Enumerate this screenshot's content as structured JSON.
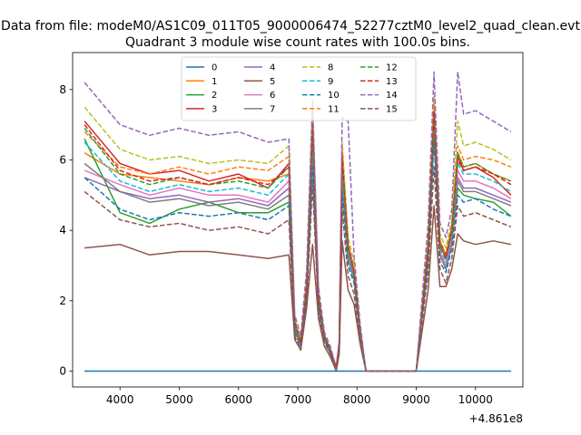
{
  "chart_data": {
    "type": "line",
    "suptitle": "Data from file: modeM0/AS1C09_011T05_9000006474_52277cztM0_level2_quad_clean.evt",
    "title": "Quadrant 3 module wise count rates with 100.0s bins.",
    "xlabel": "",
    "ylabel": "",
    "x_offset_label": "+4.861e8",
    "xlim": [
      3200,
      10800
    ],
    "ylim": [
      -0.45,
      9.05
    ],
    "x_ticks": [
      4000,
      5000,
      6000,
      7000,
      8000,
      9000,
      10000
    ],
    "x_tick_labels": [
      "4000",
      "5000",
      "6000",
      "7000",
      "8000",
      "9000",
      "10000"
    ],
    "y_ticks": [
      0,
      2,
      4,
      6,
      8
    ],
    "y_tick_labels": [
      "0",
      "2",
      "4",
      "6",
      "8"
    ],
    "x": [
      3400,
      4000,
      4500,
      5000,
      5500,
      6000,
      6500,
      6850,
      6950,
      7050,
      7150,
      7250,
      7350,
      7450,
      7550,
      7650,
      7700,
      7750,
      7850,
      7950,
      8050,
      8150,
      8250,
      8350,
      8500,
      9000,
      9200,
      9300,
      9400,
      9500,
      9600,
      9700,
      9800,
      10000,
      10300,
      10600
    ],
    "legend": {
      "placement": "upper-center",
      "columns": 4
    },
    "series": [
      {
        "name": "0",
        "color": "#1f77b4",
        "dash": "solid",
        "values": [
          0,
          0,
          0,
          0,
          0,
          0,
          0,
          0,
          0,
          0,
          0,
          0,
          0,
          0,
          0,
          0,
          0,
          0,
          0,
          0,
          0,
          0,
          0,
          0,
          0,
          0,
          0,
          0,
          0,
          0,
          0,
          0,
          0,
          0,
          0,
          0
        ]
      },
      {
        "name": "1",
        "color": "#ff7f0e",
        "dash": "solid",
        "values": [
          6.2,
          5.6,
          5.5,
          5.4,
          5.3,
          5.5,
          5.4,
          5.6,
          1.3,
          0.8,
          2.4,
          7.2,
          2.0,
          1.0,
          0.6,
          0.1,
          0.8,
          6.2,
          3.5,
          2.8,
          1.2,
          0,
          0,
          0,
          0,
          0,
          3.5,
          7.5,
          3.6,
          3.2,
          4.0,
          6.2,
          5.8,
          5.9,
          5.6,
          5.4
        ]
      },
      {
        "name": "2",
        "color": "#2ca02c",
        "dash": "solid",
        "values": [
          6.6,
          4.5,
          4.2,
          4.6,
          4.8,
          4.5,
          4.5,
          4.8,
          1.2,
          0.7,
          2.2,
          6.0,
          1.9,
          0.9,
          0.5,
          0.1,
          0.7,
          5.5,
          3.2,
          2.6,
          1.1,
          0,
          0,
          0,
          0,
          0,
          3.2,
          6.8,
          3.3,
          2.9,
          3.7,
          5.2,
          5.0,
          4.9,
          4.8,
          4.4
        ]
      },
      {
        "name": "3",
        "color": "#d62728",
        "dash": "solid",
        "values": [
          7.1,
          5.9,
          5.6,
          5.7,
          5.4,
          5.6,
          5.2,
          5.9,
          1.4,
          0.8,
          2.5,
          7.0,
          2.1,
          1.0,
          0.6,
          0.1,
          0.8,
          6.0,
          3.6,
          2.9,
          1.2,
          0,
          0,
          0,
          0,
          0,
          3.6,
          7.3,
          3.7,
          3.3,
          4.1,
          6.1,
          5.7,
          5.8,
          5.5,
          5.0
        ]
      },
      {
        "name": "4",
        "color": "#9467bd",
        "dash": "solid",
        "values": [
          5.5,
          5.1,
          4.9,
          5.0,
          4.8,
          4.9,
          4.7,
          5.2,
          1.2,
          0.7,
          2.2,
          6.2,
          1.9,
          0.9,
          0.5,
          0.1,
          0.7,
          5.3,
          3.2,
          2.6,
          1.1,
          0,
          0,
          0,
          0,
          0,
          3.2,
          6.8,
          3.3,
          2.9,
          3.7,
          5.5,
          5.2,
          5.2,
          5.0,
          4.8
        ]
      },
      {
        "name": "5",
        "color": "#8c564b",
        "dash": "solid",
        "values": [
          3.5,
          3.6,
          3.3,
          3.4,
          3.4,
          3.3,
          3.2,
          3.3,
          0.9,
          0.6,
          1.8,
          3.6,
          1.5,
          0.7,
          0.4,
          0.0,
          0.5,
          3.7,
          2.3,
          1.9,
          0.8,
          0,
          0,
          0,
          0,
          0,
          2.3,
          4.7,
          2.4,
          2.4,
          2.9,
          3.9,
          3.7,
          3.6,
          3.7,
          3.6
        ]
      },
      {
        "name": "6",
        "color": "#e377c2",
        "dash": "solid",
        "values": [
          5.7,
          5.3,
          5.0,
          5.2,
          5.0,
          5.0,
          4.8,
          5.4,
          1.3,
          0.7,
          2.3,
          6.4,
          2.0,
          0.9,
          0.5,
          0.1,
          0.7,
          5.6,
          3.3,
          2.7,
          1.1,
          0,
          0,
          0,
          0,
          0,
          3.3,
          7.0,
          3.4,
          3.0,
          3.8,
          5.7,
          5.4,
          5.4,
          5.2,
          4.9
        ]
      },
      {
        "name": "7",
        "color": "#7f7f7f",
        "dash": "solid",
        "values": [
          5.9,
          5.1,
          4.8,
          4.9,
          4.7,
          4.8,
          4.6,
          5.0,
          1.2,
          0.7,
          2.2,
          6.1,
          1.9,
          0.9,
          0.5,
          0.1,
          0.7,
          5.3,
          3.2,
          2.6,
          1.1,
          0,
          0,
          0,
          0,
          0,
          3.2,
          6.7,
          3.3,
          2.9,
          3.6,
          5.4,
          5.1,
          5.1,
          4.9,
          4.7
        ]
      },
      {
        "name": "8",
        "color": "#bcbd22",
        "dash": "dashed",
        "values": [
          7.5,
          6.3,
          6.0,
          6.1,
          5.9,
          6.0,
          5.9,
          6.4,
          1.5,
          0.9,
          2.6,
          7.6,
          2.2,
          1.0,
          0.6,
          0.1,
          0.8,
          6.5,
          3.8,
          3.1,
          1.3,
          0,
          0,
          0,
          0,
          0,
          3.8,
          7.8,
          3.9,
          3.5,
          4.3,
          7.1,
          6.4,
          6.5,
          6.3,
          6.0
        ]
      },
      {
        "name": "9",
        "color": "#17becf",
        "dash": "dashed",
        "values": [
          6.5,
          5.4,
          5.1,
          5.3,
          5.1,
          5.2,
          5.0,
          5.6,
          1.3,
          0.8,
          2.3,
          6.6,
          2.0,
          1.0,
          0.5,
          0.1,
          0.7,
          5.8,
          3.4,
          2.7,
          1.1,
          0,
          0,
          0,
          0,
          0,
          3.4,
          7.2,
          3.5,
          3.1,
          3.9,
          5.9,
          5.6,
          5.6,
          5.4,
          5.1
        ]
      },
      {
        "name": "10",
        "color": "#1f77b4",
        "dash": "dashed",
        "values": [
          5.5,
          4.6,
          4.3,
          4.5,
          4.4,
          4.5,
          4.3,
          4.7,
          1.1,
          0.7,
          2.1,
          5.8,
          1.8,
          0.9,
          0.5,
          0.1,
          0.6,
          5.1,
          3.0,
          2.5,
          1.0,
          0,
          0,
          0,
          0,
          0,
          3.1,
          6.6,
          3.1,
          2.8,
          3.5,
          5.0,
          4.8,
          4.9,
          4.6,
          4.4
        ]
      },
      {
        "name": "11",
        "color": "#ff7f0e",
        "dash": "dashed",
        "values": [
          6.8,
          5.8,
          5.6,
          5.8,
          5.6,
          5.8,
          5.7,
          6.1,
          1.4,
          0.8,
          2.5,
          7.2,
          2.1,
          1.0,
          0.6,
          0.1,
          0.8,
          6.3,
          3.6,
          2.9,
          1.2,
          0,
          0,
          0,
          0,
          0,
          3.6,
          7.6,
          3.7,
          3.3,
          4.1,
          6.4,
          6.0,
          6.1,
          6.0,
          5.8
        ]
      },
      {
        "name": "12",
        "color": "#2ca02c",
        "dash": "dashed",
        "values": [
          6.9,
          5.6,
          5.3,
          5.5,
          5.3,
          5.4,
          5.2,
          5.8,
          1.3,
          0.8,
          2.4,
          6.8,
          2.1,
          1.0,
          0.6,
          0.1,
          0.8,
          6.0,
          3.5,
          2.8,
          1.2,
          0,
          0,
          0,
          0,
          0,
          3.5,
          7.3,
          3.6,
          3.2,
          4.0,
          6.2,
          5.8,
          5.9,
          5.6,
          5.4
        ]
      },
      {
        "name": "13",
        "color": "#d62728",
        "dash": "dashed",
        "values": [
          7.0,
          5.7,
          5.4,
          5.5,
          5.3,
          5.5,
          5.3,
          5.8,
          1.4,
          0.8,
          2.4,
          7.0,
          2.1,
          1.0,
          0.6,
          0.1,
          0.8,
          6.1,
          3.5,
          2.8,
          1.2,
          0,
          0,
          0,
          0,
          0,
          3.5,
          7.4,
          3.6,
          3.2,
          4.0,
          6.0,
          5.7,
          5.8,
          5.6,
          5.3
        ]
      },
      {
        "name": "14",
        "color": "#9467bd",
        "dash": "dashed",
        "values": [
          8.2,
          7.0,
          6.7,
          6.9,
          6.7,
          6.8,
          6.5,
          6.6,
          1.6,
          1.0,
          2.9,
          7.7,
          2.4,
          1.1,
          0.7,
          0.1,
          0.9,
          7.2,
          7.1,
          3.3,
          1.4,
          0,
          0,
          0,
          0,
          0,
          4.2,
          8.5,
          4.2,
          3.8,
          4.6,
          8.5,
          7.3,
          7.4,
          7.1,
          6.8
        ]
      },
      {
        "name": "15",
        "color": "#8c564b",
        "dash": "dashed",
        "values": [
          5.1,
          4.3,
          4.1,
          4.2,
          4.0,
          4.1,
          3.9,
          4.3,
          1.0,
          0.6,
          1.9,
          5.3,
          1.7,
          0.8,
          0.5,
          0.1,
          0.6,
          4.6,
          2.7,
          2.2,
          0.9,
          0,
          0,
          0,
          0,
          0,
          2.8,
          5.8,
          2.9,
          2.5,
          3.2,
          4.7,
          4.4,
          4.5,
          4.3,
          4.1
        ]
      }
    ]
  }
}
